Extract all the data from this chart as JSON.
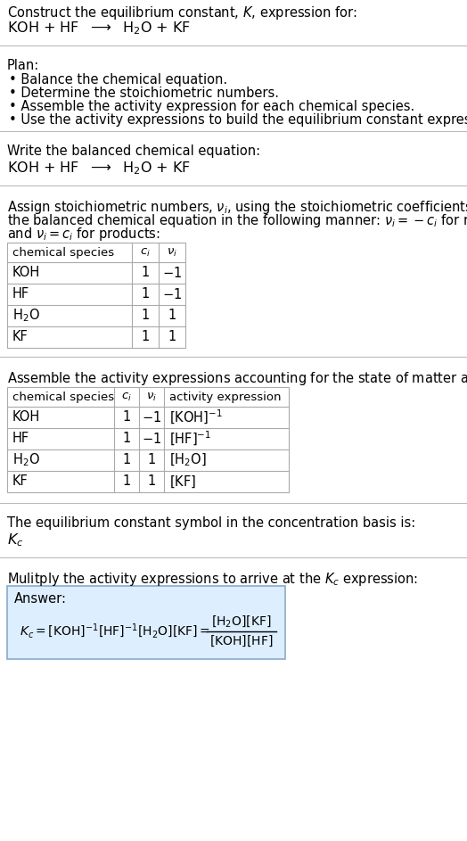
{
  "title_line1": "Construct the equilibrium constant, $K$, expression for:",
  "title_line2": "KOH + HF  $\\longrightarrow$  H$_2$O + KF",
  "plan_header": "Plan:",
  "plan_items": [
    "• Balance the chemical equation.",
    "• Determine the stoichiometric numbers.",
    "• Assemble the activity expression for each chemical species.",
    "• Use the activity expressions to build the equilibrium constant expression."
  ],
  "balanced_header": "Write the balanced chemical equation:",
  "balanced_eq": "KOH + HF  $\\longrightarrow$  H$_2$O + KF",
  "stoich_intro_lines": [
    "Assign stoichiometric numbers, $\\nu_i$, using the stoichiometric coefficients, $c_i$, from",
    "the balanced chemical equation in the following manner: $\\nu_i = -c_i$ for reactants",
    "and $\\nu_i = c_i$ for products:"
  ],
  "table1_headers": [
    "chemical species",
    "$c_i$",
    "$\\nu_i$"
  ],
  "table1_rows": [
    [
      "KOH",
      "1",
      "$-1$"
    ],
    [
      "HF",
      "1",
      "$-1$"
    ],
    [
      "H$_2$O",
      "1",
      "1"
    ],
    [
      "KF",
      "1",
      "1"
    ]
  ],
  "activity_intro": "Assemble the activity expressions accounting for the state of matter and $\\nu_i$:",
  "table2_headers": [
    "chemical species",
    "$c_i$",
    "$\\nu_i$",
    "activity expression"
  ],
  "table2_rows": [
    [
      "KOH",
      "1",
      "$-1$",
      "$[\\mathrm{KOH}]^{-1}$"
    ],
    [
      "HF",
      "1",
      "$-1$",
      "$[\\mathrm{HF}]^{-1}$"
    ],
    [
      "H$_2$O",
      "1",
      "1",
      "$[\\mathrm{H_2O}]$"
    ],
    [
      "KF",
      "1",
      "1",
      "$[\\mathrm{KF}]$"
    ]
  ],
  "kc_intro": "The equilibrium constant symbol in the concentration basis is:",
  "kc_symbol": "$K_c$",
  "multiply_intro": "Mulitply the activity expressions to arrive at the $K_c$ expression:",
  "answer_label": "Answer:",
  "bg_color": "#ffffff",
  "answer_bg_color": "#ddeeff",
  "answer_border_color": "#88aacc",
  "font_size": 10.5,
  "small_font_size": 9.5
}
